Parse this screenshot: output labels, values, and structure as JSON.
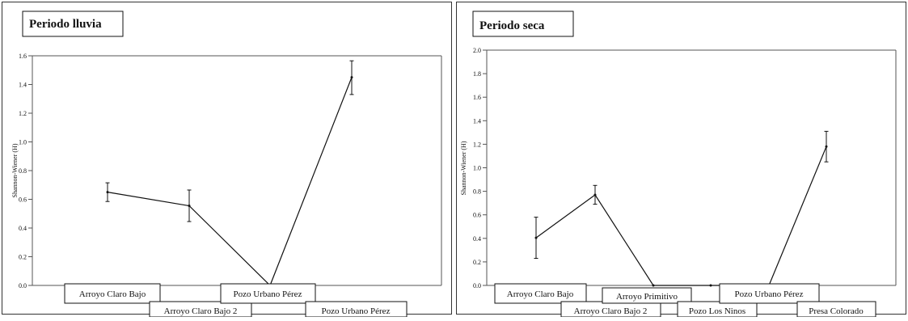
{
  "chart_data": [
    {
      "type": "line",
      "title": "Periodo lluvia",
      "ylabel": "Shannon-Wiener (H)",
      "ylim": [
        0,
        1.6
      ],
      "yticks": [
        "0.0",
        "0.2",
        "0.4",
        "0.6",
        "0.8",
        "1.0",
        "1.2",
        "1.4",
        "1.6"
      ],
      "categories": [
        "Arroyo Claro Bajo",
        "Arroyo Claro Bajo 2",
        "Pozo Urbano Pérez",
        "Pozo Urbano Pérez"
      ],
      "series": [
        {
          "values": [
            0.65,
            0.555,
            0.0,
            1.45
          ],
          "err_low": [
            0.585,
            0.445,
            0.0,
            1.33
          ],
          "err_high": [
            0.715,
            0.665,
            0.0,
            1.565
          ]
        }
      ],
      "grid": false
    },
    {
      "type": "line",
      "title": "Periodo seca",
      "ylabel": "Shannon-Wiener (H)",
      "ylim": [
        0,
        2.0
      ],
      "yticks": [
        "0.0",
        "0.2",
        "0.4",
        "0.6",
        "0.8",
        "1.0",
        "1.2",
        "1.4",
        "1.6",
        "1.8",
        "2.0"
      ],
      "categories": [
        "Arroyo Claro Bajo",
        "Arroyo Claro Bajo 2",
        "Arroyo Primitivo",
        "Pozo Los Ninos",
        "Pozo Urbano Pérez",
        "Presa Colorado"
      ],
      "series": [
        {
          "values": [
            0.405,
            0.77,
            0.0,
            0.0,
            0.0,
            1.18
          ],
          "err_low": [
            0.23,
            0.69,
            0.0,
            0.0,
            0.0,
            1.05
          ],
          "err_high": [
            0.58,
            0.85,
            0.0,
            0.0,
            0.0,
            1.31
          ]
        }
      ],
      "grid": false
    }
  ]
}
